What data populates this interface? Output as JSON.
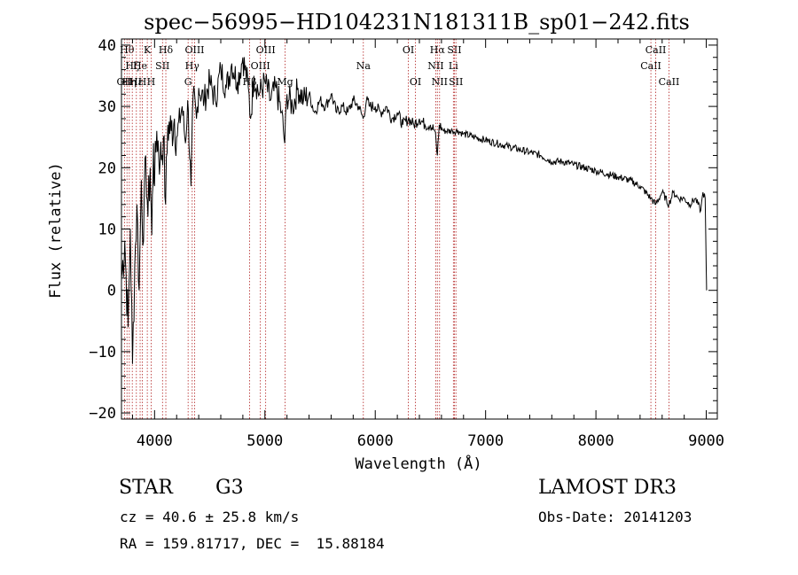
{
  "chart_data": {
    "type": "line",
    "title": "spec−56995−HD104231N181311B_sp01−242.fits",
    "xlabel": "Wavelength (Å)",
    "ylabel": "Flux (relative)",
    "xlim": [
      3700,
      9100
    ],
    "ylim": [
      -21,
      41
    ],
    "x_ticks": [
      4000,
      5000,
      6000,
      7000,
      8000,
      9000
    ],
    "x_tick_labels": [
      "4000",
      "5000",
      "6000",
      "7000",
      "8000",
      "9000"
    ],
    "y_ticks": [
      -20,
      -10,
      0,
      10,
      20,
      30,
      40
    ],
    "y_tick_labels": [
      "−20",
      "−10",
      "0",
      "10",
      "20",
      "30",
      "40"
    ],
    "series": [
      {
        "name": "flux",
        "points": [
          [
            3700,
            2
          ],
          [
            3730,
            8
          ],
          [
            3760,
            -6
          ],
          [
            3780,
            10
          ],
          [
            3800,
            -12
          ],
          [
            3820,
            4
          ],
          [
            3840,
            14
          ],
          [
            3860,
            0
          ],
          [
            3880,
            18
          ],
          [
            3900,
            8
          ],
          [
            3920,
            22
          ],
          [
            3940,
            12
          ],
          [
            3960,
            20
          ],
          [
            3975,
            9
          ],
          [
            3990,
            24
          ],
          [
            4000,
            17
          ],
          [
            4020,
            26
          ],
          [
            4050,
            21
          ],
          [
            4080,
            25
          ],
          [
            4100,
            14
          ],
          [
            4120,
            27
          ],
          [
            4150,
            26
          ],
          [
            4180,
            28
          ],
          [
            4200,
            25
          ],
          [
            4250,
            30
          ],
          [
            4280,
            24
          ],
          [
            4300,
            31
          ],
          [
            4330,
            17
          ],
          [
            4350,
            32
          ],
          [
            4380,
            28
          ],
          [
            4400,
            33
          ],
          [
            4450,
            31
          ],
          [
            4500,
            34
          ],
          [
            4550,
            31
          ],
          [
            4600,
            36
          ],
          [
            4650,
            33
          ],
          [
            4700,
            37
          ],
          [
            4750,
            34
          ],
          [
            4800,
            38
          ],
          [
            4850,
            33
          ],
          [
            4870,
            28
          ],
          [
            4900,
            35
          ],
          [
            4950,
            32
          ],
          [
            5000,
            34
          ],
          [
            5050,
            31
          ],
          [
            5100,
            33
          ],
          [
            5150,
            29
          ],
          [
            5180,
            24
          ],
          [
            5200,
            32
          ],
          [
            5250,
            30
          ],
          [
            5300,
            33
          ],
          [
            5350,
            31
          ],
          [
            5400,
            32
          ],
          [
            5450,
            29
          ],
          [
            5500,
            31
          ],
          [
            5550,
            30
          ],
          [
            5600,
            32
          ],
          [
            5650,
            29
          ],
          [
            5700,
            30
          ],
          [
            5750,
            29
          ],
          [
            5800,
            31
          ],
          [
            5850,
            30
          ],
          [
            5890,
            28
          ],
          [
            5920,
            31
          ],
          [
            5950,
            30
          ],
          [
            6000,
            30
          ],
          [
            6050,
            29
          ],
          [
            6100,
            30
          ],
          [
            6150,
            28
          ],
          [
            6200,
            29
          ],
          [
            6250,
            27
          ],
          [
            6300,
            28
          ],
          [
            6350,
            27
          ],
          [
            6400,
            28
          ],
          [
            6450,
            27
          ],
          [
            6500,
            27
          ],
          [
            6540,
            26
          ],
          [
            6563,
            22
          ],
          [
            6580,
            27
          ],
          [
            6620,
            26
          ],
          [
            6700,
            26
          ],
          [
            6750,
            26
          ],
          [
            6800,
            25.5
          ],
          [
            6900,
            25
          ],
          [
            7000,
            24.5
          ],
          [
            7100,
            24
          ],
          [
            7200,
            23.5
          ],
          [
            7300,
            23
          ],
          [
            7400,
            22.5
          ],
          [
            7500,
            22
          ],
          [
            7600,
            21
          ],
          [
            7700,
            21
          ],
          [
            7800,
            20.5
          ],
          [
            7900,
            20
          ],
          [
            8000,
            19.5
          ],
          [
            8100,
            19
          ],
          [
            8200,
            18.5
          ],
          [
            8300,
            18
          ],
          [
            8400,
            17
          ],
          [
            8498,
            15
          ],
          [
            8542,
            14
          ],
          [
            8600,
            16
          ],
          [
            8662,
            14
          ],
          [
            8700,
            16
          ],
          [
            8750,
            15
          ],
          [
            8800,
            15
          ],
          [
            8850,
            14
          ],
          [
            8900,
            15
          ],
          [
            8950,
            13
          ],
          [
            8970,
            16
          ],
          [
            8990,
            15
          ],
          [
            9000,
            3
          ],
          [
            9003,
            0
          ]
        ]
      }
    ],
    "line_markers": [
      {
        "wavelength": 3727,
        "labels": [
          "OII"
        ],
        "row": 2
      },
      {
        "wavelength": 3750,
        "labels": [
          "Hθ"
        ],
        "row": 0
      },
      {
        "wavelength": 3771,
        "labels": [
          "Hη"
        ],
        "row": 2
      },
      {
        "wavelength": 3798,
        "labels": [
          "Hζ"
        ],
        "row": 1
      },
      {
        "wavelength": 3835,
        "labels": [
          "Hε"
        ],
        "row": 2
      },
      {
        "wavelength": 3869,
        "labels": [
          "He"
        ],
        "row": 1
      },
      {
        "wavelength": 3889,
        "labels": [
          "H"
        ],
        "row": 2
      },
      {
        "wavelength": 3934,
        "labels": [
          "K"
        ],
        "row": 0
      },
      {
        "wavelength": 3969,
        "labels": [
          "H"
        ],
        "row": 2
      },
      {
        "wavelength": 4072,
        "labels": [
          "SII"
        ],
        "row": 1
      },
      {
        "wavelength": 4102,
        "labels": [
          "Hδ"
        ],
        "row": 0
      },
      {
        "wavelength": 4304,
        "labels": [
          "G"
        ],
        "row": 2
      },
      {
        "wavelength": 4341,
        "labels": [
          "Hγ"
        ],
        "row": 1
      },
      {
        "wavelength": 4363,
        "labels": [
          "OIII"
        ],
        "row": 0
      },
      {
        "wavelength": 4861,
        "labels": [
          "Hβ"
        ],
        "row": 2
      },
      {
        "wavelength": 4959,
        "labels": [
          "OIII"
        ],
        "row": 1
      },
      {
        "wavelength": 5007,
        "labels": [
          "OIII"
        ],
        "row": 0
      },
      {
        "wavelength": 5183,
        "labels": [
          "Mg"
        ],
        "row": 2
      },
      {
        "wavelength": 5892,
        "labels": [
          "Na"
        ],
        "row": 1
      },
      {
        "wavelength": 6300,
        "labels": [
          "OI"
        ],
        "row": 0
      },
      {
        "wavelength": 6364,
        "labels": [
          "OI"
        ],
        "row": 2
      },
      {
        "wavelength": 6548,
        "labels": [
          "NII"
        ],
        "row": 1
      },
      {
        "wavelength": 6563,
        "labels": [
          "Hα"
        ],
        "row": 0
      },
      {
        "wavelength": 6583,
        "labels": [
          "NII"
        ],
        "row": 2
      },
      {
        "wavelength": 6708,
        "labels": [
          "Li"
        ],
        "row": 1
      },
      {
        "wavelength": 6717,
        "labels": [
          "SII"
        ],
        "row": 0
      },
      {
        "wavelength": 6731,
        "labels": [
          "SII"
        ],
        "row": 2
      },
      {
        "wavelength": 8498,
        "labels": [
          "CaII"
        ],
        "row": 1
      },
      {
        "wavelength": 8542,
        "labels": [
          "CaII"
        ],
        "row": 0
      },
      {
        "wavelength": 8662,
        "labels": [
          "CaII"
        ],
        "row": 2
      }
    ],
    "colors": {
      "axes": "#000000",
      "series": "#000000",
      "markers": "#b22222"
    }
  },
  "info": {
    "object_class": "STAR",
    "subclass": "G3",
    "survey": "LAMOST DR3",
    "cz": "cz = 40.6 ± 25.8 km/s",
    "obs_date": "Obs-Date: 20141203",
    "coords": "RA = 159.81717, DEC =  15.88184"
  }
}
